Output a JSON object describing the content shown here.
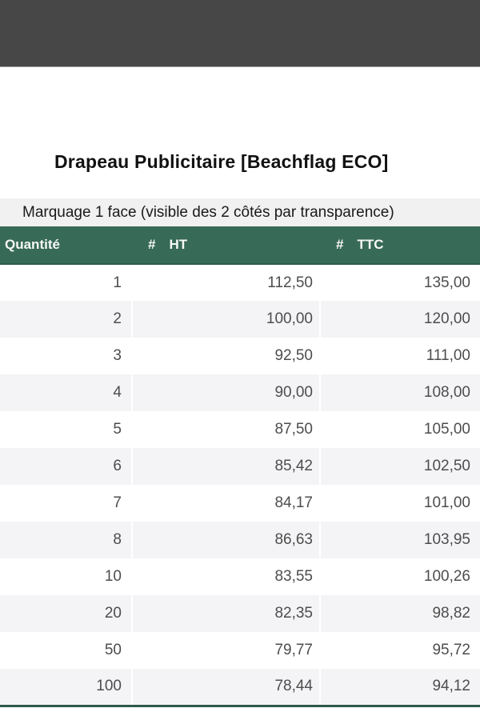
{
  "page": {
    "title": "Drapeau Publicitaire [Beachflag ECO]",
    "subtitle": "Marquage 1 face (visible des 2 côtés par transparence)"
  },
  "table": {
    "headers": {
      "quantity": "Quantité",
      "hash": "#",
      "ht": "HT",
      "ttc": "TTC"
    },
    "rows": [
      {
        "qty": "1",
        "ht": "112,50",
        "ttc": "135,00"
      },
      {
        "qty": "2",
        "ht": "100,00",
        "ttc": "120,00"
      },
      {
        "qty": "3",
        "ht": "92,50",
        "ttc": "111,00"
      },
      {
        "qty": "4",
        "ht": "90,00",
        "ttc": "108,00"
      },
      {
        "qty": "5",
        "ht": "87,50",
        "ttc": "105,00"
      },
      {
        "qty": "6",
        "ht": "85,42",
        "ttc": "102,50"
      },
      {
        "qty": "7",
        "ht": "84,17",
        "ttc": "101,00"
      },
      {
        "qty": "8",
        "ht": "86,63",
        "ttc": "103,95"
      },
      {
        "qty": "10",
        "ht": "83,55",
        "ttc": "100,26"
      },
      {
        "qty": "20",
        "ht": "82,35",
        "ttc": "98,82"
      },
      {
        "qty": "50",
        "ht": "79,77",
        "ttc": "95,72"
      },
      {
        "qty": "100",
        "ht": "78,44",
        "ttc": "94,12"
      }
    ]
  },
  "colors": {
    "top_bar_bg": "#474747",
    "top_bar_border": "#9e9e9e",
    "table_header_bg": "#376a57",
    "table_border_green": "#2d5a49",
    "subtitle_bg": "#f1f1f1",
    "alt_row_bg": "#f4f4f6",
    "data_text": "#4d4d4d",
    "title_text": "#111111"
  }
}
